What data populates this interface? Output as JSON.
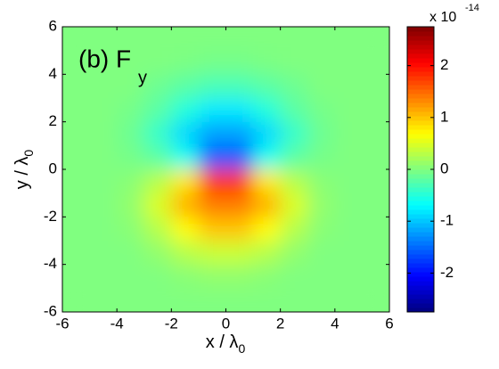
{
  "chart_data": {
    "type": "heatmap",
    "annotation": "(b) F",
    "annotation_sub": "y",
    "xlabel": "x / λ",
    "xlabel_sub": "0",
    "ylabel": "y / λ",
    "ylabel_sub": "0",
    "colorbar_label": "x 10",
    "colorbar_exponent": "-14",
    "colormap": "jet",
    "x": [
      -5.5,
      -4.5,
      -3.5,
      -2.5,
      -1.5,
      -0.5,
      0.5,
      1.5,
      2.5,
      3.5,
      4.5,
      5.5
    ],
    "y": [
      5.5,
      4.5,
      3.5,
      2.5,
      1.5,
      0.5,
      -0.5,
      -1.5,
      -2.5,
      -3.5,
      -4.5,
      -5.5
    ],
    "z": [
      [
        0,
        0,
        0,
        0,
        0,
        0,
        0,
        0,
        0,
        0,
        0,
        0
      ],
      [
        0,
        0,
        0,
        0,
        -0.02,
        -0.05,
        -0.05,
        -0.02,
        0,
        0,
        0,
        0
      ],
      [
        0,
        0,
        0,
        -0.1,
        -0.2,
        -0.3,
        -0.3,
        -0.2,
        -0.1,
        0,
        0,
        0
      ],
      [
        0,
        0,
        -0.05,
        -0.2,
        -0.5,
        -0.8,
        -0.8,
        -0.5,
        -0.2,
        -0.05,
        0,
        0
      ],
      [
        0,
        0,
        -0.1,
        -0.4,
        -0.9,
        -1.2,
        -1.2,
        -0.9,
        -0.4,
        -0.1,
        0,
        0
      ],
      [
        0,
        0,
        -0.05,
        -0.2,
        -0.6,
        -1.6,
        -1.6,
        -0.6,
        -0.2,
        -0.05,
        0,
        0
      ],
      [
        0,
        0,
        0.05,
        0.3,
        0.8,
        1.8,
        1.8,
        0.8,
        0.3,
        0.05,
        0,
        0
      ],
      [
        0,
        0,
        0.1,
        0.5,
        1.1,
        1.4,
        1.4,
        1.1,
        0.5,
        0.1,
        0,
        0
      ],
      [
        0,
        0,
        0.05,
        0.3,
        0.7,
        1.0,
        1.0,
        0.7,
        0.3,
        0.05,
        0,
        0
      ],
      [
        0,
        0,
        0,
        0.1,
        0.3,
        0.4,
        0.4,
        0.3,
        0.1,
        0,
        0,
        0
      ],
      [
        0,
        0,
        0,
        0,
        0.05,
        0.1,
        0.1,
        0.05,
        0,
        0,
        0,
        0
      ],
      [
        0,
        0,
        0,
        0,
        0,
        0,
        0,
        0,
        0,
        0,
        0,
        0
      ]
    ],
    "xlim": [
      -6,
      6
    ],
    "xticks": [
      -6,
      -4,
      -2,
      0,
      2,
      4,
      6
    ],
    "ylim": [
      -6,
      6
    ],
    "yticks": [
      -6,
      -4,
      -2,
      0,
      2,
      4,
      6
    ],
    "zlim": [
      -2.75,
      2.75
    ],
    "zticks": [
      -2,
      -1,
      0,
      1,
      2
    ]
  }
}
